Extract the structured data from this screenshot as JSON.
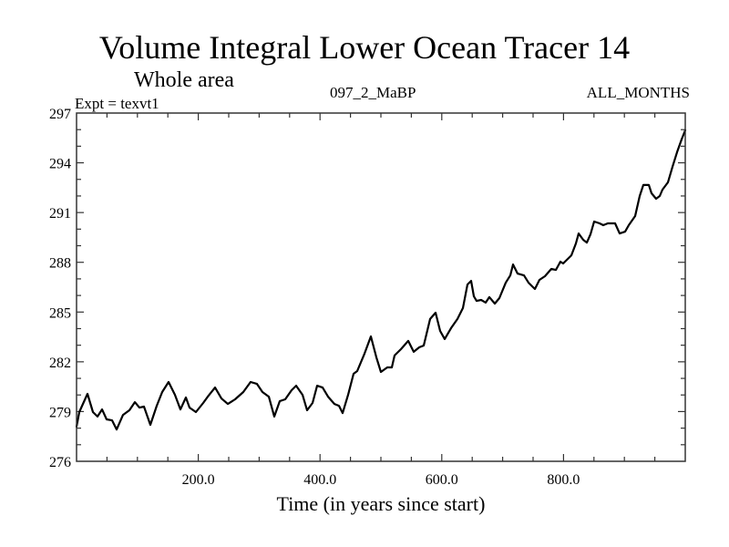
{
  "header": {
    "title": "Volume Integral Lower Ocean Tracer 14",
    "subtitle": "Whole area",
    "expt_label": "Expt = texvt1",
    "center_label": "097_2_MaBP",
    "right_label": "ALL_MONTHS"
  },
  "chart_data": {
    "type": "line",
    "title": "Volume Integral Lower Ocean Tracer 14",
    "subtitle": "Whole area",
    "xlabel": "Time (in years since start)",
    "ylabel": "",
    "xlim": [
      0,
      1000
    ],
    "ylim": [
      276,
      297
    ],
    "x_ticks": [
      200,
      400,
      600,
      800
    ],
    "x_tick_labels": [
      "200.0",
      "400.0",
      "600.0",
      "800.0"
    ],
    "x_minor_step": 50,
    "y_ticks": [
      276,
      279,
      282,
      285,
      288,
      291,
      294,
      297
    ],
    "y_tick_labels": [
      "276",
      "279",
      "282",
      "285",
      "288",
      "291",
      "294",
      "297"
    ],
    "y_minor_step": 1,
    "grid": false,
    "legend": "none",
    "series": [
      {
        "name": "Volume Integral Lower Ocean Tracer 14",
        "color": "#000000",
        "x": [
          0,
          4.5,
          18.0,
          26.9,
          34.4,
          41.9,
          49.4,
          58.4,
          65.9,
          76.3,
          86.8,
          95.8,
          103.3,
          110.8,
          121.3,
          131.7,
          140.7,
          151.2,
          161.7,
          170.7,
          179.6,
          185.6,
          196.1,
          208.1,
          215.6,
          227.5,
          238.0,
          248.5,
          260.5,
          274.0,
          285.9,
          296.4,
          305.4,
          315.9,
          324.9,
          333.8,
          342.8,
          353.3,
          360.8,
          371.3,
          378.7,
          387.7,
          395.2,
          404.2,
          413.2,
          423.7,
          431.1,
          437.1,
          446.1,
          455.1,
          461.1,
          473.1,
          483.5,
          492.5,
          500.0,
          510.5,
          518.0,
          522.5,
          532.9,
          544.9,
          553.9,
          562.9,
          570.4,
          580.8,
          589.8,
          597.3,
          604.8,
          615.3,
          625.7,
          634.7,
          642.2,
          648.2,
          652.7,
          657.2,
          664.7,
          672.2,
          678.1,
          687.1,
          694.6,
          705.1,
          712.6,
          717.1,
          724.6,
          735.0,
          742.5,
          753.0,
          760.5,
          769.5,
          780.0,
          787.4,
          794.9,
          799.4,
          812.9,
          820.4,
          824.9,
          832.3,
          838.3,
          844.3,
          850.3,
          859.3,
          865.3,
          872.8,
          884.7,
          892.2,
          901.2,
          907.2,
          917.7,
          925.1,
          931.1,
          940.1,
          944.6,
          952.1,
          958.1,
          962.6,
          971.6,
          979.0,
          986.5,
          994.0,
          1000
        ],
        "y": [
          278.09,
          278.97,
          280.07,
          278.97,
          278.7,
          279.13,
          278.53,
          278.47,
          277.92,
          278.8,
          279.08,
          279.57,
          279.24,
          279.3,
          278.2,
          279.35,
          280.18,
          280.78,
          280.01,
          279.13,
          279.85,
          279.24,
          278.97,
          279.52,
          279.9,
          280.45,
          279.79,
          279.46,
          279.74,
          280.18,
          280.78,
          280.67,
          280.18,
          279.9,
          278.7,
          279.63,
          279.74,
          280.29,
          280.56,
          280.01,
          279.08,
          279.52,
          280.56,
          280.45,
          279.9,
          279.46,
          279.35,
          278.91,
          280.01,
          281.28,
          281.44,
          282.49,
          283.53,
          282.27,
          281.39,
          281.66,
          281.66,
          282.38,
          282.76,
          283.26,
          282.6,
          282.87,
          282.98,
          284.58,
          284.96,
          283.86,
          283.37,
          284.03,
          284.58,
          285.24,
          286.66,
          286.88,
          285.95,
          285.67,
          285.73,
          285.57,
          285.9,
          285.51,
          285.84,
          286.77,
          287.21,
          287.87,
          287.32,
          287.21,
          286.77,
          286.39,
          286.94,
          287.16,
          287.6,
          287.54,
          288.04,
          287.93,
          288.42,
          289.14,
          289.74,
          289.36,
          289.19,
          289.69,
          290.46,
          290.35,
          290.24,
          290.35,
          290.35,
          289.74,
          289.85,
          290.24,
          290.79,
          292.0,
          292.66,
          292.66,
          292.16,
          291.83,
          292.0,
          292.38,
          292.82,
          293.76,
          294.64,
          295.41,
          295.96
        ]
      }
    ]
  }
}
